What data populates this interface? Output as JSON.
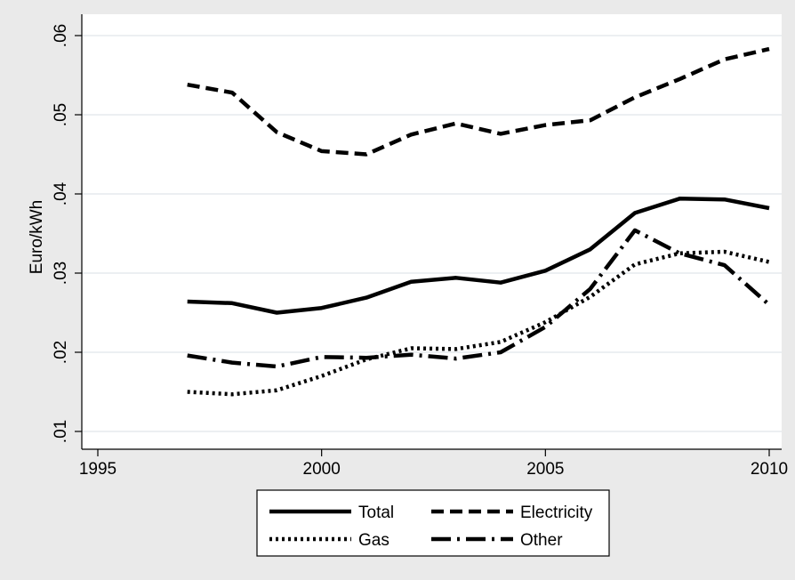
{
  "chart_data": {
    "type": "line",
    "title": "",
    "xlabel": "",
    "ylabel": "Euro/kWh",
    "xlim": [
      1995,
      2010
    ],
    "ylim": [
      0.01,
      0.06
    ],
    "x_ticks": [
      1995,
      2000,
      2005,
      2010
    ],
    "x_tick_labels": [
      "1995",
      "2000",
      "2005",
      "2010"
    ],
    "y_ticks": [
      0.01,
      0.02,
      0.03,
      0.04,
      0.05,
      0.06
    ],
    "y_tick_labels": [
      ".01",
      ".02",
      ".03",
      ".04",
      ".05",
      ".06"
    ],
    "grid": "horizontal",
    "legend_position": "bottom",
    "x": [
      1997,
      1998,
      1999,
      2000,
      2001,
      2002,
      2003,
      2004,
      2005,
      2006,
      2007,
      2008,
      2009,
      2010
    ],
    "series": [
      {
        "name": "Total",
        "style": "solid",
        "values": [
          0.0264,
          0.0262,
          0.025,
          0.0256,
          0.0269,
          0.0289,
          0.0294,
          0.0288,
          0.0303,
          0.033,
          0.0376,
          0.0394,
          0.0393,
          0.0382
        ]
      },
      {
        "name": "Electricity",
        "style": "dash",
        "values": [
          0.0538,
          0.0528,
          0.0478,
          0.0454,
          0.045,
          0.0475,
          0.0489,
          0.0476,
          0.0487,
          0.0493,
          0.0522,
          0.0545,
          0.057,
          0.0583
        ]
      },
      {
        "name": "Gas",
        "style": "dot",
        "values": [
          0.015,
          0.0147,
          0.0152,
          0.017,
          0.0191,
          0.0205,
          0.0204,
          0.0213,
          0.0238,
          0.027,
          0.0311,
          0.0325,
          0.0327,
          0.0314
        ]
      },
      {
        "name": "Other",
        "style": "dashdot",
        "values": [
          0.0196,
          0.0187,
          0.0182,
          0.0194,
          0.0193,
          0.0197,
          0.0192,
          0.02,
          0.0232,
          0.028,
          0.0354,
          0.0325,
          0.031,
          0.026
        ]
      }
    ],
    "colors": {
      "line": "#000000",
      "plot_bg": "#ffffff",
      "frame_bg": "#eaeaea",
      "grid": "#e6eaee"
    }
  }
}
